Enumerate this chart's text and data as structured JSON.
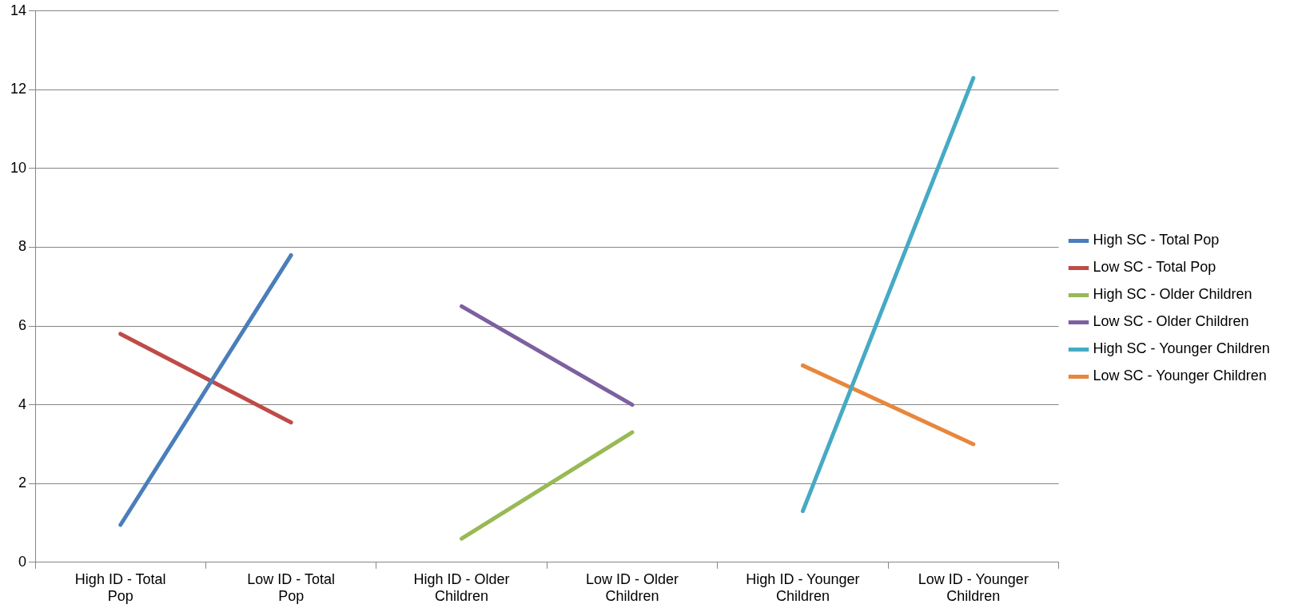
{
  "chart_data": {
    "type": "line",
    "categories": [
      "High ID - Total Pop",
      "Low ID - Total Pop",
      "High ID - Older Children",
      "Low ID - Older Children",
      "High ID - Younger Children",
      "Low ID - Younger Children"
    ],
    "series": [
      {
        "name": "High SC - Total Pop",
        "color": "#4a7ebb",
        "values": [
          0.95,
          7.8,
          null,
          null,
          null,
          null
        ]
      },
      {
        "name": "Low SC - Total Pop",
        "color": "#be4b48",
        "values": [
          5.8,
          3.55,
          null,
          null,
          null,
          null
        ]
      },
      {
        "name": "High SC - Older Children",
        "color": "#98b954",
        "values": [
          null,
          null,
          0.6,
          3.3,
          null,
          null
        ]
      },
      {
        "name": "Low SC - Older Children",
        "color": "#7d60a0",
        "values": [
          null,
          null,
          6.5,
          4.0,
          null,
          null
        ]
      },
      {
        "name": "High SC - Younger Children",
        "color": "#46aac5",
        "values": [
          null,
          null,
          null,
          null,
          1.3,
          12.3
        ]
      },
      {
        "name": "Low SC - Younger Children",
        "color": "#e8873c",
        "values": [
          null,
          null,
          null,
          null,
          5.0,
          3.0
        ]
      }
    ],
    "ylim": [
      0,
      14
    ],
    "yticks": [
      0,
      2,
      4,
      6,
      8,
      10,
      12,
      14
    ],
    "grid": "y",
    "legend": "right",
    "marker": "none",
    "line_style": "solid"
  }
}
